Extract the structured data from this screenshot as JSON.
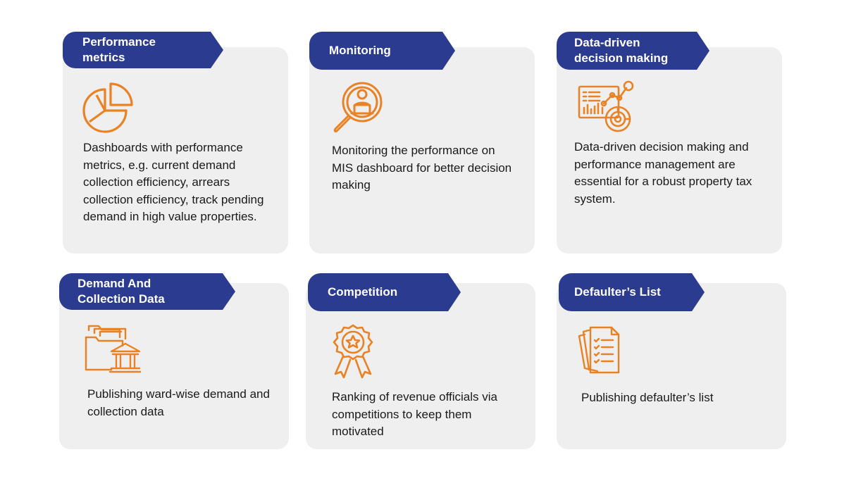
{
  "accent_color": "#e98224",
  "tag_color": "#2b3b8f",
  "card_color": "#efeff0",
  "cards": [
    {
      "title": "Performance metrics",
      "icon": "pie-chart-icon",
      "text": "Dashboards with performance metrics, e.g. current demand collection efficiency, arrears collection efficiency, track pending demand in high value properties."
    },
    {
      "title": "Monitoring",
      "icon": "magnifier-user-icon",
      "text": "Monitoring the performance on MIS dashboard for better decision making"
    },
    {
      "title": "Data-driven decision making",
      "icon": "analytics-dashboard-icon",
      "text": "Data-driven decision making and performance management are essential for a robust property tax system."
    },
    {
      "title": "Demand And Collection Data",
      "icon": "folder-bank-icon",
      "text": "Publishing ward-wise demand and collection data"
    },
    {
      "title": "Competition",
      "icon": "award-badge-icon",
      "text": "Ranking of revenue officials via competitions to keep them motivated"
    },
    {
      "title": "Defaulter’s List",
      "icon": "checklist-documents-icon",
      "text": "Publishing defaulter’s list"
    }
  ]
}
